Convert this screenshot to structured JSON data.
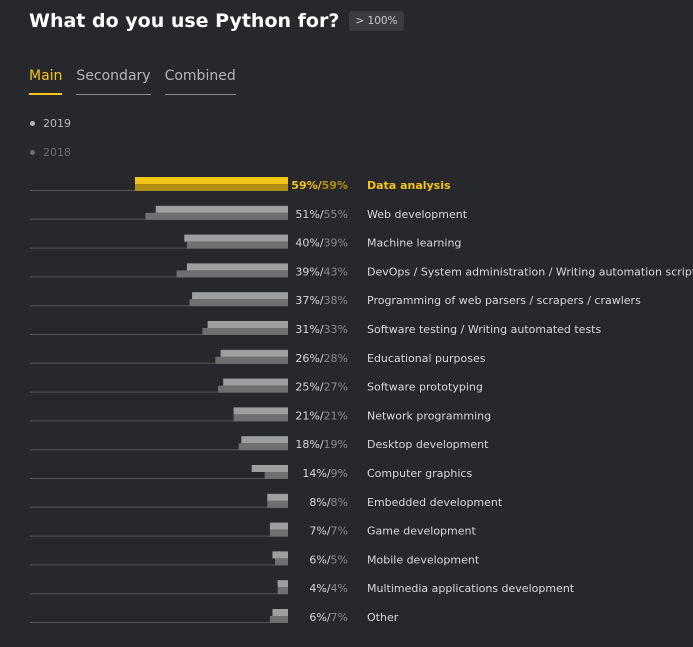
{
  "header": {
    "title": "What do you use Python for?",
    "badge": "> 100%"
  },
  "tabs": [
    {
      "label": "Main",
      "active": true
    },
    {
      "label": "Secondary",
      "active": false
    },
    {
      "label": "Combined",
      "active": false
    }
  ],
  "legend": [
    {
      "label": "2019",
      "color": "#b8b8b8"
    },
    {
      "label": "2018",
      "color": "#6e6e6e"
    }
  ],
  "colors": {
    "bar_2019": "#9e9e9e",
    "bar_2018": "#6f6f6f",
    "highlight_2019": "#f5c518",
    "highlight_2018": "#b08e14",
    "label": "#d8d8d8",
    "value_2018": "#8a8a8a",
    "highlight_text": "#f5c518",
    "baseline": "#55565a"
  },
  "chart_data": {
    "type": "bar",
    "orientation": "horizontal",
    "highlight_index": 0,
    "categories": [
      "Data analysis",
      "Web development",
      "Machine learning",
      "DevOps / System administration / Writing automation scripts",
      "Programming of web parsers / scrapers / crawlers",
      "Software testing / Writing automated tests",
      "Educational purposes",
      "Software prototyping",
      "Network programming",
      "Desktop development",
      "Computer graphics",
      "Embedded development",
      "Game development",
      "Mobile development",
      "Multimedia applications development",
      "Other"
    ],
    "series": [
      {
        "name": "2019",
        "values": [
          59,
          51,
          40,
          39,
          37,
          31,
          26,
          25,
          21,
          18,
          14,
          8,
          7,
          6,
          4,
          6
        ]
      },
      {
        "name": "2018",
        "values": [
          59,
          55,
          39,
          43,
          38,
          33,
          28,
          27,
          21,
          19,
          9,
          8,
          7,
          5,
          4,
          7
        ]
      }
    ],
    "value_labels_2019": [
      "59%/",
      "51%/",
      "40%/",
      "39%/",
      "37%/",
      "31%/",
      "26%/",
      "25%/",
      "21%/",
      "18%/",
      "14%/",
      "8%/",
      "7%/",
      "6%/",
      "4%/",
      "6%/"
    ],
    "value_labels_2018": [
      "59%",
      "55%",
      "39%",
      "43%",
      "38%",
      "33%",
      "28%",
      "27%",
      "21%",
      "19%",
      "9%",
      "8%",
      "7%",
      "5%",
      "4%",
      "7%"
    ],
    "xlim": [
      0,
      59
    ]
  }
}
